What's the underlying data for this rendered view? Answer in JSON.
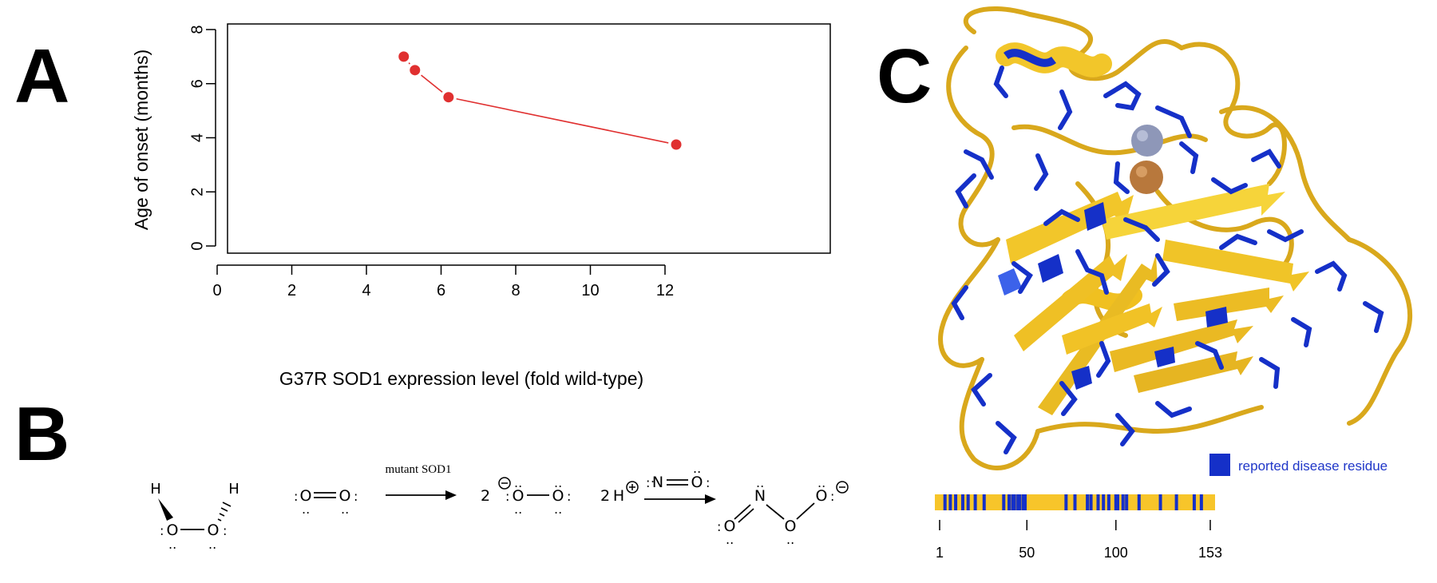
{
  "panels": {
    "a": "A",
    "b": "B",
    "c": "C"
  },
  "chart_data": {
    "type": "line",
    "xlabel": "G37R SOD1 expression level (fold wild-type)",
    "ylabel": "Age of onset (months)",
    "xlim": [
      0,
      12.5
    ],
    "ylim": [
      0,
      8
    ],
    "x_ticks": [
      0,
      2,
      4,
      6,
      8,
      10,
      12
    ],
    "y_ticks": [
      0,
      2,
      4,
      6,
      8
    ],
    "series": [
      {
        "x": [
          5.0,
          5.3,
          6.2,
          12.3
        ],
        "y": [
          7.0,
          6.5,
          5.5,
          3.75
        ],
        "color": "#e03030"
      }
    ],
    "grid": false
  },
  "reaction": {
    "h2o2": {
      "h_left": "H",
      "h_right": "H",
      "o_left": "O",
      "o_right": "O"
    },
    "o2": {
      "o_left": "O",
      "o_right": "O"
    },
    "arrow1_label": "mutant SOD1",
    "superoxide": {
      "coef": "2",
      "o_left": "O",
      "o_right": "O"
    },
    "proton": {
      "coef": "2",
      "h": "H"
    },
    "no": {
      "n": "N",
      "o": "O"
    },
    "peroxynitrite": {
      "o1": "O",
      "n": "N",
      "o2": "O",
      "o3": "O"
    }
  },
  "structure": {
    "legend_label": "reported disease residue",
    "ribbon_color": "#e8b820",
    "residue_color": "#1530c8",
    "track_color": "#f7c52a",
    "track_range": [
      1,
      153
    ],
    "track_ticks": [
      1,
      50,
      100,
      153
    ],
    "disease_residues": [
      4,
      7,
      10,
      14,
      17,
      21,
      26,
      37,
      40,
      42,
      43,
      45,
      46,
      48,
      49,
      72,
      77,
      84,
      86,
      90,
      93,
      96,
      100,
      101,
      104,
      106,
      113,
      125,
      134,
      144,
      148
    ]
  }
}
